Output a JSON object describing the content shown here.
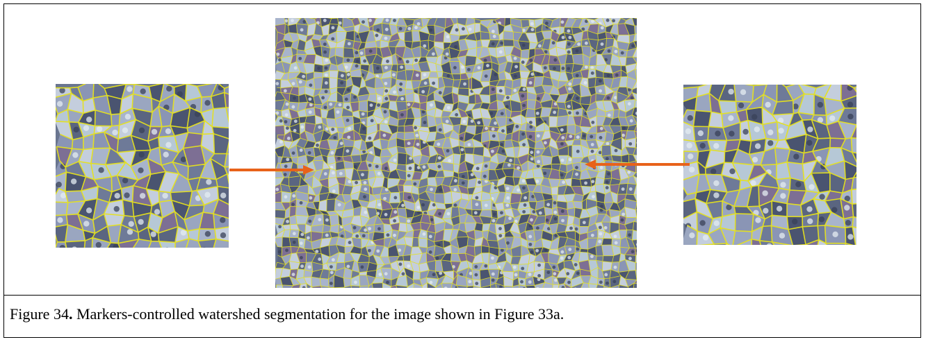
{
  "figure": {
    "number_label": "Figure 34",
    "caption_text": " Markers-controlled watershed segmentation for the image shown in Figure 33a.",
    "panels": [
      {
        "id": "left-zoom",
        "description_icon": "zoomed-segmentation-left"
      },
      {
        "id": "main-seg",
        "description_icon": "full-segmentation-image"
      },
      {
        "id": "right-zoom",
        "description_icon": "zoomed-segmentation-right"
      }
    ],
    "colors": {
      "boundary": "#e6e21c",
      "arrow": "#e8621a",
      "texture_base": "#6a7690"
    }
  }
}
